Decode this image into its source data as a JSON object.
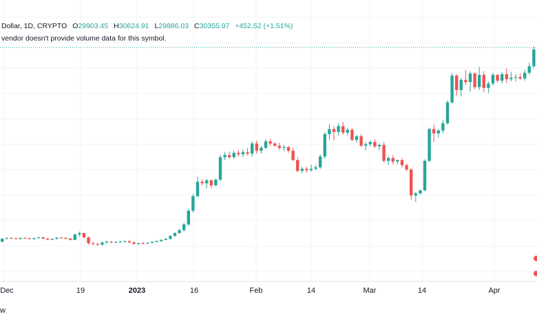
{
  "legend": {
    "symbol": "Dollar, 1D, CRYPTO",
    "open_label": "O",
    "open": "29903.45",
    "high_label": "H",
    "high": "30624.91",
    "low_label": "L",
    "low": "29886.03",
    "close_label": "C",
    "close": "30355.97",
    "change": "+452.52 (+1.51%)"
  },
  "notice": "vendor doesn't provide volume data for this symbol.",
  "footer_text": "w",
  "colors": {
    "up": "#26a69a",
    "down": "#ef5350",
    "grid": "#f0f3fa",
    "price_line": "#26a69a"
  },
  "chart_data": {
    "type": "candlestick",
    "x_tick_labels": [
      "Dec",
      "19",
      "2023",
      "16",
      "Feb",
      "14",
      "Mar",
      "14",
      "Apr"
    ],
    "bold_tick_labels": [
      "2023"
    ],
    "grid": true,
    "candles": [
      [
        16800,
        17050,
        16750,
        17000
      ],
      [
        17000,
        17100,
        16950,
        17050
      ],
      [
        17050,
        17120,
        16980,
        17040
      ],
      [
        17040,
        17080,
        16960,
        17000
      ],
      [
        17000,
        17090,
        16950,
        17060
      ],
      [
        17060,
        17120,
        17000,
        17030
      ],
      [
        17030,
        17080,
        16950,
        16990
      ],
      [
        16990,
        17060,
        16930,
        17050
      ],
      [
        17050,
        17150,
        17000,
        17100
      ],
      [
        17100,
        17140,
        16980,
        17010
      ],
      [
        17010,
        17050,
        16900,
        16940
      ],
      [
        16940,
        17020,
        16900,
        17000
      ],
      [
        17000,
        17100,
        16960,
        17080
      ],
      [
        17080,
        17150,
        17030,
        17070
      ],
      [
        17070,
        17110,
        16980,
        17010
      ],
      [
        17010,
        17040,
        16900,
        16920
      ],
      [
        16920,
        17350,
        16900,
        17300
      ],
      [
        17300,
        17500,
        17150,
        17400
      ],
      [
        17400,
        17420,
        17050,
        17100
      ],
      [
        17100,
        17150,
        16600,
        16700
      ],
      [
        16700,
        16800,
        16550,
        16650
      ],
      [
        16650,
        16720,
        16500,
        16600
      ],
      [
        16600,
        16800,
        16500,
        16750
      ],
      [
        16750,
        16880,
        16650,
        16800
      ],
      [
        16800,
        16850,
        16700,
        16760
      ],
      [
        16760,
        16830,
        16700,
        16780
      ],
      [
        16780,
        16850,
        16720,
        16800
      ],
      [
        16800,
        16880,
        16750,
        16830
      ],
      [
        16830,
        16900,
        16720,
        16750
      ],
      [
        16750,
        16800,
        16600,
        16650
      ],
      [
        16650,
        16730,
        16580,
        16700
      ],
      [
        16700,
        16780,
        16620,
        16680
      ],
      [
        16680,
        16760,
        16640,
        16720
      ],
      [
        16720,
        16820,
        16690,
        16790
      ],
      [
        16790,
        16870,
        16740,
        16850
      ],
      [
        16850,
        16960,
        16800,
        16930
      ],
      [
        16930,
        17050,
        16900,
        17000
      ],
      [
        17000,
        17250,
        16950,
        17200
      ],
      [
        17200,
        17450,
        17150,
        17400
      ],
      [
        17400,
        17700,
        17350,
        17600
      ],
      [
        17600,
        18100,
        17500,
        18000
      ],
      [
        18000,
        19100,
        17900,
        18950
      ],
      [
        18950,
        20100,
        18800,
        19950
      ],
      [
        19950,
        21300,
        19900,
        20950
      ],
      [
        20950,
        21100,
        20700,
        20850
      ],
      [
        20850,
        21150,
        20500,
        21050
      ],
      [
        21050,
        21100,
        20500,
        20700
      ],
      [
        20700,
        21150,
        20650,
        21100
      ],
      [
        21100,
        22800,
        21000,
        22650
      ],
      [
        22650,
        23000,
        22450,
        22800
      ],
      [
        22800,
        23050,
        22550,
        22650
      ],
      [
        22650,
        23100,
        22550,
        22950
      ],
      [
        22950,
        23150,
        22700,
        22850
      ],
      [
        22850,
        23200,
        22650,
        23000
      ],
      [
        23000,
        23300,
        22750,
        22900
      ],
      [
        22900,
        23750,
        22700,
        23600
      ],
      [
        23600,
        23800,
        22900,
        23100
      ],
      [
        23100,
        23450,
        22900,
        23300
      ],
      [
        23300,
        23900,
        23200,
        23750
      ],
      [
        23750,
        23950,
        23450,
        23600
      ],
      [
        23600,
        23700,
        23350,
        23450
      ],
      [
        23450,
        23650,
        23150,
        23300
      ],
      [
        23300,
        23500,
        23050,
        23350
      ],
      [
        23350,
        23450,
        22950,
        23100
      ],
      [
        23100,
        23300,
        22400,
        22450
      ],
      [
        22450,
        22650,
        21600,
        21700
      ],
      [
        21700,
        22000,
        21550,
        21850
      ],
      [
        21850,
        22000,
        21600,
        21750
      ],
      [
        21750,
        22150,
        21650,
        21850
      ],
      [
        21850,
        22100,
        21750,
        21950
      ],
      [
        21950,
        22850,
        21850,
        22700
      ],
      [
        22700,
        24400,
        22550,
        24250
      ],
      [
        24250,
        24950,
        23850,
        24600
      ],
      [
        24600,
        24800,
        23800,
        24400
      ],
      [
        24400,
        25000,
        24150,
        24800
      ],
      [
        24800,
        25100,
        24200,
        24350
      ],
      [
        24350,
        24700,
        24150,
        24550
      ],
      [
        24550,
        24650,
        23750,
        23850
      ],
      [
        23850,
        24200,
        23650,
        24100
      ],
      [
        24100,
        24250,
        23350,
        23450
      ],
      [
        23450,
        23700,
        23100,
        23550
      ],
      [
        23550,
        23800,
        23400,
        23700
      ],
      [
        23700,
        23900,
        23250,
        23400
      ],
      [
        23400,
        23600,
        23150,
        23500
      ],
      [
        23500,
        23700,
        22300,
        22400
      ],
      [
        22400,
        22700,
        22100,
        22600
      ],
      [
        22600,
        22800,
        22150,
        22350
      ],
      [
        22350,
        22500,
        22150,
        22450
      ],
      [
        22450,
        22600,
        21950,
        22100
      ],
      [
        22100,
        22200,
        21700,
        21800
      ],
      [
        21800,
        21900,
        19700,
        20000
      ],
      [
        20000,
        20250,
        19550,
        20150
      ],
      [
        20150,
        20400,
        20050,
        20350
      ],
      [
        20350,
        22500,
        20300,
        22400
      ],
      [
        22400,
        24700,
        22300,
        24600
      ],
      [
        24600,
        24900,
        23700,
        24300
      ],
      [
        24300,
        24600,
        24000,
        24500
      ],
      [
        24500,
        25200,
        24300,
        25000
      ],
      [
        25000,
        26600,
        24900,
        26450
      ],
      [
        26450,
        28500,
        26350,
        28300
      ],
      [
        28300,
        28400,
        26900,
        27300
      ],
      [
        27300,
        28150,
        26850,
        28000
      ],
      [
        28000,
        28700,
        27650,
        27850
      ],
      [
        27850,
        28600,
        27200,
        28450
      ],
      [
        28450,
        28500,
        27350,
        27500
      ],
      [
        27500,
        28900,
        27300,
        28350
      ],
      [
        28350,
        28600,
        27150,
        27450
      ],
      [
        27450,
        27900,
        27100,
        27750
      ],
      [
        27750,
        28500,
        27600,
        28350
      ],
      [
        28350,
        28400,
        27800,
        27950
      ],
      [
        27950,
        28550,
        27750,
        28400
      ],
      [
        28400,
        28800,
        27800,
        28050
      ],
      [
        28050,
        28550,
        27900,
        28150
      ],
      [
        28150,
        28400,
        27900,
        28200
      ],
      [
        28200,
        28450,
        28000,
        28100
      ],
      [
        28100,
        28700,
        27950,
        28500
      ],
      [
        28500,
        29200,
        28350,
        28950
      ],
      [
        28950,
        30300,
        28800,
        30100
      ],
      [
        30100,
        30450,
        29800,
        30250
      ]
    ]
  }
}
